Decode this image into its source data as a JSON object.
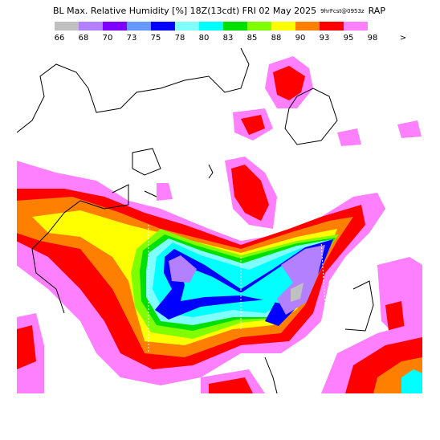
{
  "header": {
    "title": "BL Max. Relative Humidity [%] 18Z(13cdt) FRI 02 May 2025",
    "forecast": "9hrFcst@0953z",
    "model": "RAP"
  },
  "colorbar": {
    "labels": [
      "66",
      "68",
      "70",
      "73",
      "75",
      "78",
      "80",
      "83",
      "85",
      "88",
      "90",
      "93",
      "95",
      "98"
    ],
    "colors": [
      "#c0c0c0",
      "#b380ff",
      "#8000ff",
      "#6699ff",
      "#0000ff",
      "#80ffff",
      "#00ffff",
      "#00e000",
      "#80ff00",
      "#ffff00",
      "#ff8000",
      "#ff0000",
      "#ff80ff"
    ],
    "more": ">"
  }
}
